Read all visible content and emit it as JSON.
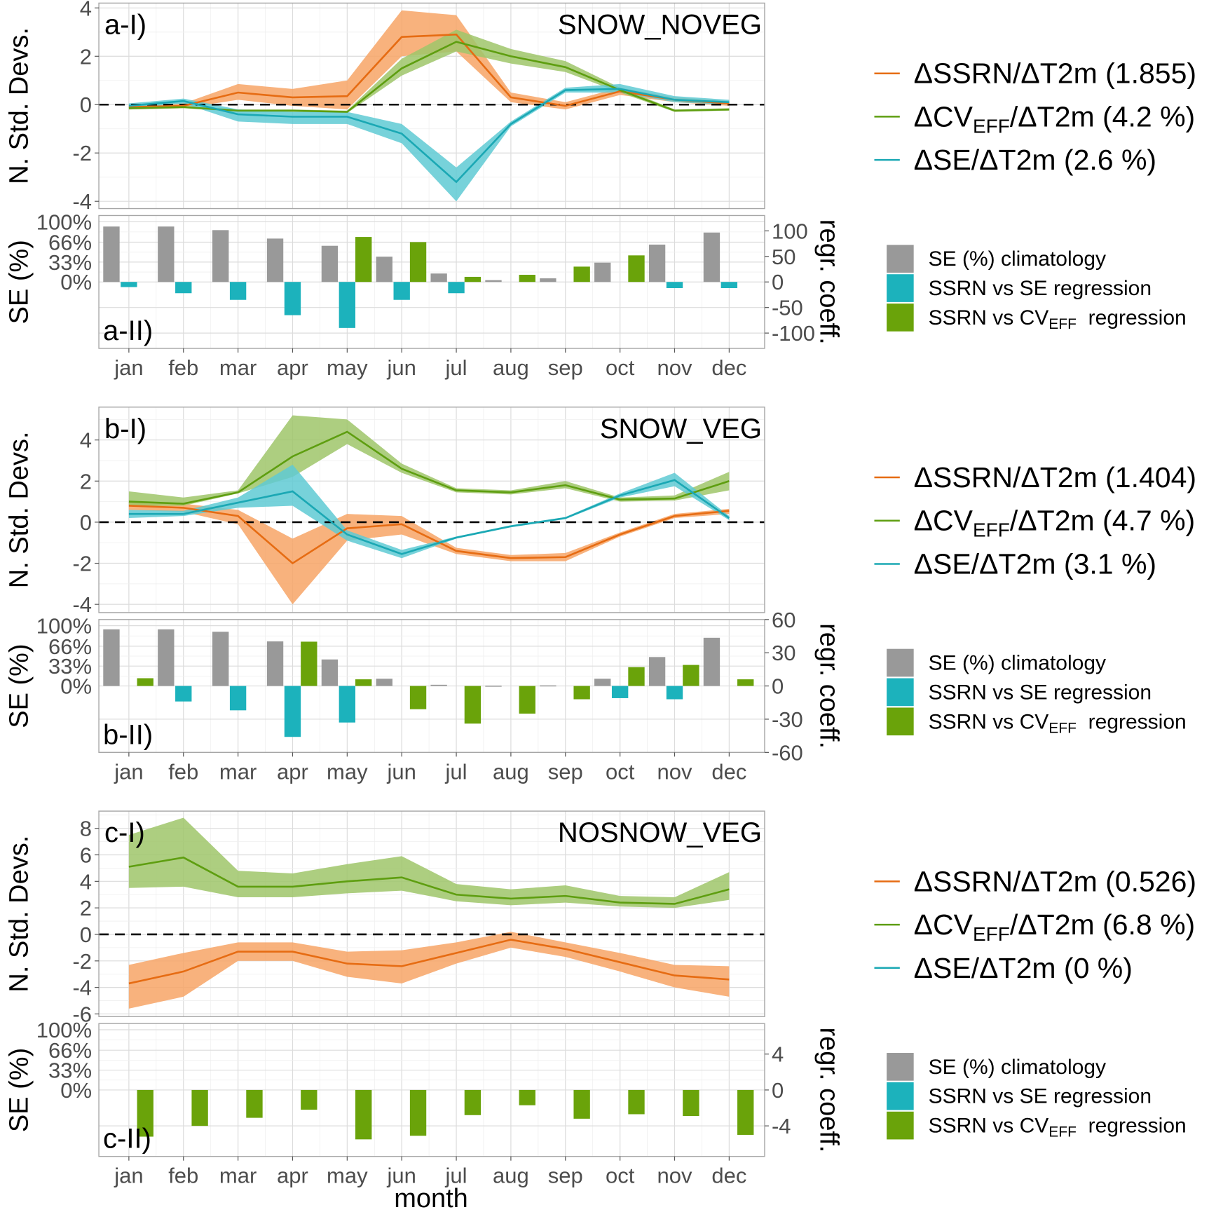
{
  "months": [
    "jan",
    "feb",
    "mar",
    "apr",
    "may",
    "jun",
    "jul",
    "aug",
    "sep",
    "oct",
    "nov",
    "dec"
  ],
  "colors": {
    "ssrn": "#e66c13",
    "ssrn_band": "#f7a466",
    "cv": "#5e9e10",
    "cv_band": "#9fc56a",
    "se": "#1ba8b4",
    "se_band": "#5fcad3",
    "bar_grey": "#999999",
    "bar_cyan": "#1cb2bc",
    "bar_green": "#6aa30a"
  },
  "xlabel": "month",
  "legend_bars": {
    "grey": "SE (%) climatology",
    "cyan": "SSRN  vs SE regression",
    "green_pre": "SSRN vs CV",
    "green_sub": "EFF",
    "green_post": "  regression"
  },
  "chart_data": [
    {
      "type": "line",
      "panel": "a-I)",
      "title": "SNOW_NOVEG",
      "ylabel": "N. Std. Devs.",
      "ylim": [
        -4.3,
        4.2
      ],
      "yticks": [
        -4,
        -2,
        0,
        2,
        4
      ],
      "legend": [
        {
          "key": "ssrn",
          "prefix": "ΔSSRN",
          "sub": "",
          "suffix": "/ΔT2m (1.855)"
        },
        {
          "key": "cv",
          "prefix": "ΔCV",
          "sub": "EFF",
          "suffix": "/ΔT2m (4.2 %)"
        },
        {
          "key": "se",
          "prefix": "ΔSE",
          "sub": "",
          "suffix": "/ΔT2m (2.6 %)"
        }
      ],
      "series": [
        {
          "name": "ΔSSRN/ΔT2m",
          "key": "ssrn",
          "values": [
            -0.1,
            -0.05,
            0.5,
            0.3,
            0.35,
            2.8,
            2.9,
            0.3,
            -0.05,
            0.55,
            0.2,
            0.05
          ],
          "lower": [
            -0.2,
            -0.15,
            0.2,
            -0.05,
            -0.2,
            2.0,
            2.2,
            0.1,
            -0.2,
            0.4,
            0.1,
            -0.05
          ],
          "upper": [
            0.0,
            0.05,
            0.85,
            0.65,
            1.0,
            3.9,
            3.7,
            0.5,
            0.1,
            0.7,
            0.3,
            0.15
          ]
        },
        {
          "name": "ΔCV_EFF/ΔT2m",
          "key": "cv",
          "values": [
            -0.15,
            -0.1,
            -0.25,
            -0.25,
            -0.3,
            1.5,
            2.6,
            2.0,
            1.55,
            0.6,
            -0.25,
            -0.2
          ],
          "lower": [
            -0.2,
            -0.15,
            -0.3,
            -0.3,
            -0.35,
            1.2,
            2.2,
            1.7,
            1.35,
            0.5,
            -0.3,
            -0.25
          ],
          "upper": [
            -0.1,
            -0.05,
            -0.2,
            -0.2,
            -0.25,
            1.9,
            3.1,
            2.3,
            1.8,
            0.7,
            -0.2,
            -0.15
          ]
        },
        {
          "name": "ΔSE/ΔT2m",
          "key": "se",
          "values": [
            -0.05,
            0.15,
            -0.4,
            -0.5,
            -0.5,
            -1.2,
            -3.2,
            -0.8,
            0.6,
            0.65,
            0.2,
            0.1
          ],
          "lower": [
            -0.15,
            0.05,
            -0.7,
            -0.8,
            -0.8,
            -1.6,
            -4.0,
            -0.9,
            0.5,
            0.5,
            0.1,
            0.0
          ],
          "upper": [
            0.05,
            0.25,
            -0.2,
            -0.3,
            -0.3,
            -0.8,
            -2.6,
            -0.7,
            0.7,
            0.85,
            0.35,
            0.2
          ]
        }
      ]
    },
    {
      "type": "bar",
      "panel": "a-II)",
      "ylabel_left": "SE (%)",
      "ylabel_right": "regr. coeff.",
      "left_ticks": [
        "0%",
        "33%",
        "66%",
        "100%"
      ],
      "left_tick_values": [
        0,
        33,
        66,
        100
      ],
      "right_ticks": [
        -100,
        -50,
        0,
        50,
        100
      ],
      "right_ylim": [
        -130,
        130
      ],
      "series": [
        {
          "name": "SE (%) climatology",
          "key": "grey",
          "axis": "left",
          "values": [
            92,
            92,
            86,
            72,
            60,
            42,
            14,
            3,
            6,
            32,
            62,
            82
          ]
        },
        {
          "name": "SSRN vs SE regression",
          "key": "cyan",
          "axis": "right",
          "values": [
            -10,
            -22,
            -35,
            -65,
            -90,
            -35,
            -22,
            0,
            0,
            0,
            -12,
            -12
          ]
        },
        {
          "name": "SSRN vs CV_EFF regression",
          "key": "green",
          "axis": "right",
          "values": [
            0,
            0,
            0,
            0,
            88,
            78,
            10,
            14,
            30,
            52,
            0,
            0
          ]
        }
      ]
    },
    {
      "type": "line",
      "panel": "b-I)",
      "title": "SNOW_VEG",
      "ylabel": "N. Std. Devs.",
      "ylim": [
        -4.4,
        5.6
      ],
      "yticks": [
        -4,
        -2,
        0,
        2,
        4
      ],
      "legend": [
        {
          "key": "ssrn",
          "prefix": "ΔSSRN",
          "sub": "",
          "suffix": "/ΔT2m (1.404)"
        },
        {
          "key": "cv",
          "prefix": "ΔCV",
          "sub": "EFF",
          "suffix": "/ΔT2m (4.7 %)"
        },
        {
          "key": "se",
          "prefix": "ΔSE",
          "sub": "",
          "suffix": "/ΔT2m (3.1 %)"
        }
      ],
      "series": [
        {
          "name": "ΔSSRN/ΔT2m",
          "key": "ssrn",
          "values": [
            0.8,
            0.7,
            0.3,
            -2.0,
            -0.3,
            -0.1,
            -1.4,
            -1.75,
            -1.7,
            -0.6,
            0.3,
            0.55
          ],
          "lower": [
            0.6,
            0.5,
            -0.1,
            -4.0,
            -0.9,
            -0.6,
            -1.55,
            -1.9,
            -1.9,
            -0.7,
            0.2,
            0.4
          ],
          "upper": [
            1.0,
            0.9,
            0.6,
            -0.8,
            0.4,
            0.3,
            -1.25,
            -1.6,
            -1.5,
            -0.5,
            0.4,
            0.65
          ]
        },
        {
          "name": "ΔCV_EFF/ΔT2m",
          "key": "cv",
          "values": [
            1.0,
            0.9,
            1.45,
            3.2,
            4.4,
            2.6,
            1.55,
            1.45,
            1.8,
            1.1,
            1.15,
            2.0
          ],
          "lower": [
            0.8,
            0.8,
            1.4,
            2.2,
            3.8,
            2.4,
            1.45,
            1.35,
            1.65,
            1.0,
            1.05,
            1.55
          ],
          "upper": [
            1.5,
            1.2,
            1.55,
            5.2,
            5.0,
            2.85,
            1.65,
            1.55,
            2.0,
            1.2,
            1.3,
            2.45
          ]
        },
        {
          "name": "ΔSE/ΔT2m",
          "key": "se",
          "values": [
            0.4,
            0.4,
            0.95,
            1.5,
            -0.6,
            -1.55,
            -0.75,
            -0.2,
            0.2,
            1.3,
            2.05,
            0.2
          ],
          "lower": [
            0.2,
            0.3,
            0.7,
            0.8,
            -0.9,
            -1.75,
            -0.8,
            -0.25,
            0.15,
            1.2,
            1.75,
            0.1
          ],
          "upper": [
            0.6,
            0.55,
            1.2,
            2.8,
            -0.4,
            -1.35,
            -0.7,
            -0.15,
            0.25,
            1.4,
            2.4,
            0.3
          ]
        }
      ]
    },
    {
      "type": "bar",
      "panel": "b-II)",
      "ylabel_left": "SE (%)",
      "ylabel_right": "regr. coeff.",
      "left_ticks": [
        "0%",
        "33%",
        "66%",
        "100%"
      ],
      "left_tick_values": [
        0,
        33,
        66,
        100
      ],
      "right_ticks": [
        -60,
        -30,
        0,
        30,
        60
      ],
      "right_ylim": [
        -60,
        60
      ],
      "series": [
        {
          "name": "SE (%) climatology",
          "key": "grey",
          "axis": "left",
          "values": [
            94,
            94,
            90,
            74,
            44,
            12,
            2,
            0.5,
            1,
            12,
            48,
            80
          ]
        },
        {
          "name": "SSRN vs SE regression",
          "key": "cyan",
          "axis": "right",
          "values": [
            0,
            -14,
            -22,
            -46,
            -33,
            0,
            0,
            0,
            0,
            -11,
            -12,
            0
          ]
        },
        {
          "name": "SSRN vs CV_EFF regression",
          "key": "green",
          "axis": "right",
          "values": [
            7,
            0,
            0,
            40,
            6,
            -21,
            -34,
            -25,
            -12,
            17,
            19,
            6
          ]
        }
      ]
    },
    {
      "type": "line",
      "panel": "c-I)",
      "title": "NOSNOW_VEG",
      "ylabel": "N. Std. Devs.",
      "ylim": [
        -6.2,
        9.3
      ],
      "yticks": [
        -6,
        -4,
        -2,
        0,
        2,
        4,
        6,
        8
      ],
      "legend": [
        {
          "key": "ssrn",
          "prefix": "ΔSSRN",
          "sub": "",
          "suffix": "/ΔT2m (0.526)"
        },
        {
          "key": "cv",
          "prefix": "ΔCV",
          "sub": "EFF",
          "suffix": "/ΔT2m (6.8 %)"
        },
        {
          "key": "se",
          "prefix": "ΔSE",
          "sub": "",
          "suffix": "/ΔT2m (0 %)"
        }
      ],
      "series": [
        {
          "name": "ΔSSRN/ΔT2m",
          "key": "ssrn",
          "values": [
            -3.7,
            -2.8,
            -1.3,
            -1.3,
            -2.2,
            -2.4,
            -1.4,
            -0.4,
            -1.1,
            -2.1,
            -3.1,
            -3.4
          ],
          "lower": [
            -5.6,
            -4.7,
            -2.0,
            -2.0,
            -3.2,
            -3.7,
            -2.2,
            -1.0,
            -1.7,
            -2.8,
            -4.0,
            -4.7
          ],
          "upper": [
            -2.3,
            -1.4,
            -0.6,
            -0.6,
            -1.3,
            -1.2,
            -0.6,
            0.2,
            -0.6,
            -1.4,
            -2.3,
            -2.4
          ]
        },
        {
          "name": "ΔCV_EFF/ΔT2m",
          "key": "cv",
          "values": [
            5.1,
            5.8,
            3.6,
            3.6,
            4.0,
            4.3,
            3.0,
            2.7,
            2.9,
            2.4,
            2.3,
            3.4
          ],
          "lower": [
            3.5,
            3.6,
            2.8,
            2.8,
            3.1,
            3.3,
            2.5,
            2.2,
            2.4,
            2.1,
            2.0,
            2.6
          ],
          "upper": [
            7.5,
            8.8,
            4.8,
            4.6,
            5.3,
            5.9,
            3.8,
            3.4,
            3.7,
            2.9,
            2.8,
            4.7
          ]
        }
      ]
    },
    {
      "type": "bar",
      "panel": "c-II)",
      "ylabel_left": "SE (%)",
      "ylabel_right": "regr. coeff.",
      "left_ticks": [
        "0%",
        "33%",
        "66%",
        "100%"
      ],
      "left_tick_values": [
        0,
        33,
        66,
        100
      ],
      "right_ticks": [
        -4,
        0,
        4
      ],
      "right_ylim": [
        -7.4,
        7.4
      ],
      "series": [
        {
          "name": "SE (%) climatology",
          "key": "grey",
          "axis": "left",
          "values": [
            0,
            0,
            0,
            0,
            0,
            0,
            0,
            0,
            0,
            0,
            0,
            0
          ]
        },
        {
          "name": "SSRN vs SE regression",
          "key": "cyan",
          "axis": "right",
          "values": [
            0,
            0,
            0,
            0,
            0,
            0,
            0,
            0,
            0,
            0,
            0,
            0
          ]
        },
        {
          "name": "SSRN vs CV_EFF regression",
          "key": "green",
          "axis": "right",
          "values": [
            -5.2,
            -4.0,
            -3.1,
            -2.2,
            -5.5,
            -5.1,
            -2.8,
            -1.7,
            -3.2,
            -2.7,
            -2.9,
            -5.0
          ]
        }
      ]
    }
  ]
}
